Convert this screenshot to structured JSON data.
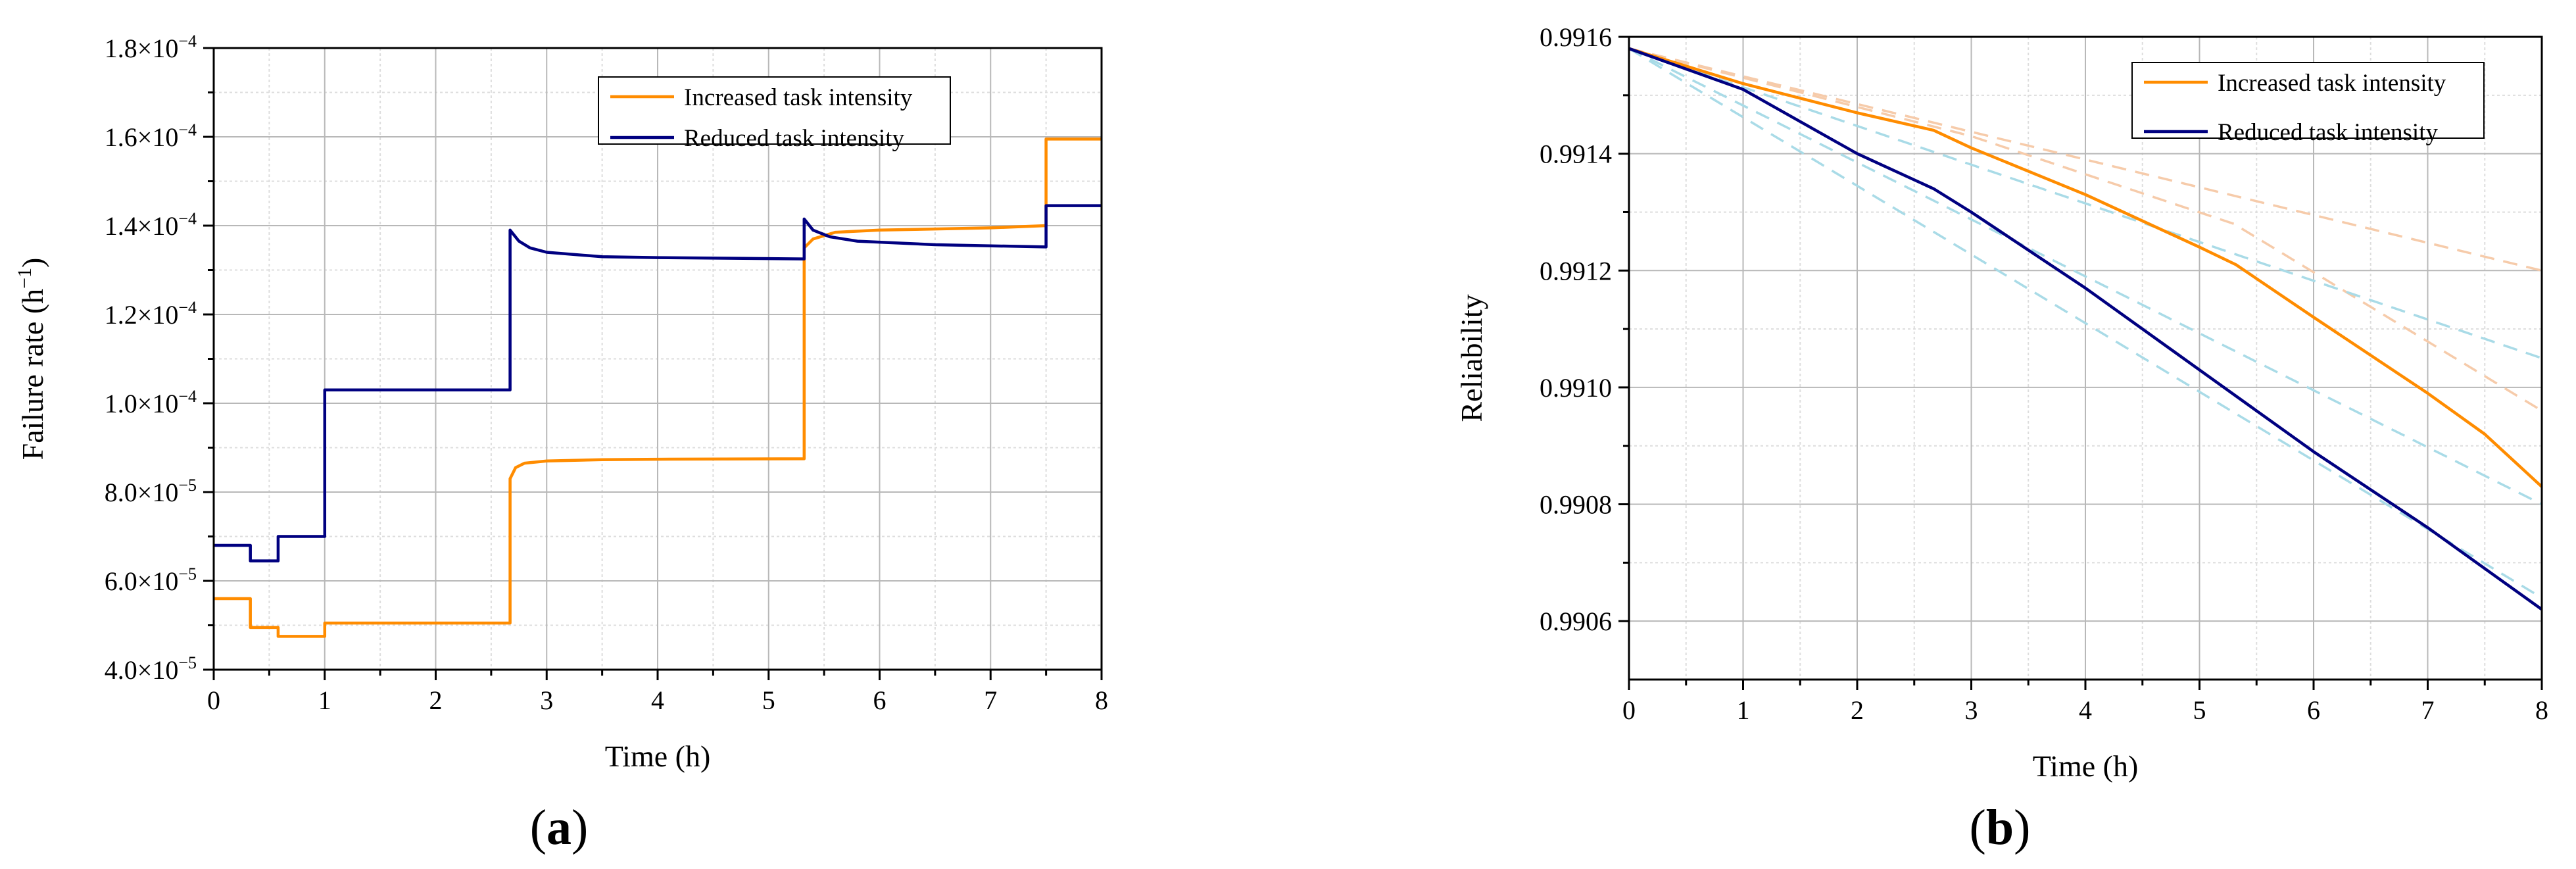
{
  "colors": {
    "increased": "#ff8c00",
    "reduced": "#000080",
    "light_blue": "#a9dbe7",
    "light_orange": "#f6cbaa"
  },
  "chart_data": [
    {
      "panel": "(a)",
      "panel_letter": "a",
      "type": "line",
      "xlabel": "Time (h)",
      "ylabel": "Failure rate (h",
      "ylabel_sup": "−1",
      "ylabel_close": ")",
      "xlim": [
        0,
        8
      ],
      "ylim": [
        4e-05,
        0.00018
      ],
      "xticks": [
        0,
        1,
        2,
        3,
        4,
        5,
        6,
        7,
        8
      ],
      "xtick_labels": [
        "0",
        "1",
        "2",
        "3",
        "4",
        "5",
        "6",
        "7",
        "8"
      ],
      "yticks": [
        4e-05,
        6e-05,
        8e-05,
        0.0001,
        0.00012,
        0.00014,
        0.00016,
        0.00018
      ],
      "ytick_labels": [
        {
          "mant": "4.0×10",
          "exp": "−5"
        },
        {
          "mant": "6.0×10",
          "exp": "−5"
        },
        {
          "mant": "8.0×10",
          "exp": "−5"
        },
        {
          "mant": "1.0×10",
          "exp": "−4"
        },
        {
          "mant": "1.2×10",
          "exp": "−4"
        },
        {
          "mant": "1.4×10",
          "exp": "−4"
        },
        {
          "mant": "1.6×10",
          "exp": "−4"
        },
        {
          "mant": "1.8×10",
          "exp": "−4"
        }
      ],
      "grid": true,
      "legend_position": "top-right",
      "series": [
        {
          "name": "Increased task intensity",
          "color_key": "increased",
          "x": [
            0,
            0.33,
            0.33,
            0.58,
            0.58,
            1.0,
            1.0,
            2.67,
            2.67,
            2.72,
            2.8,
            3.0,
            3.5,
            4.0,
            5.32,
            5.32,
            5.4,
            5.6,
            6.0,
            7.0,
            7.5,
            7.5,
            8.0
          ],
          "y": [
            5.6e-05,
            5.6e-05,
            4.95e-05,
            4.95e-05,
            4.75e-05,
            4.75e-05,
            5.05e-05,
            5.05e-05,
            8.3e-05,
            8.55e-05,
            8.65e-05,
            8.7e-05,
            8.73e-05,
            8.74e-05,
            8.75e-05,
            0.000135,
            0.000137,
            0.0001385,
            0.000139,
            0.0001395,
            0.00014,
            0.0001595,
            0.0001595
          ]
        },
        {
          "name": "Reduced task intensity",
          "color_key": "reduced",
          "x": [
            0,
            0.33,
            0.33,
            0.58,
            0.58,
            1.0,
            1.0,
            2.67,
            2.67,
            2.75,
            2.85,
            3.0,
            3.5,
            4.0,
            5.32,
            5.32,
            5.4,
            5.55,
            5.8,
            6.5,
            7.5,
            7.5,
            8.0
          ],
          "y": [
            6.8e-05,
            6.8e-05,
            6.45e-05,
            6.45e-05,
            7e-05,
            7e-05,
            0.000103,
            0.000103,
            0.000139,
            0.0001365,
            0.000135,
            0.000134,
            0.000133,
            0.0001328,
            0.0001325,
            0.0001415,
            0.000139,
            0.0001375,
            0.0001365,
            0.0001357,
            0.0001352,
            0.0001445,
            0.0001445
          ]
        }
      ]
    },
    {
      "panel": "(b)",
      "panel_letter": "b",
      "type": "line",
      "xlabel": "Time (h)",
      "ylabel": "Reliability",
      "xlim": [
        0,
        8
      ],
      "ylim": [
        0.9905,
        0.9916
      ],
      "xticks": [
        0,
        1,
        2,
        3,
        4,
        5,
        6,
        7,
        8
      ],
      "xtick_labels": [
        "0",
        "1",
        "2",
        "3",
        "4",
        "5",
        "6",
        "7",
        "8"
      ],
      "yticks": [
        0.9906,
        0.9908,
        0.991,
        0.9912,
        0.9914,
        0.9916
      ],
      "ytick_labels": [
        "0.9906",
        "0.9908",
        "0.9910",
        "0.9912",
        "0.9914",
        "0.9916"
      ],
      "grid": true,
      "legend_position": "top-right",
      "series": [
        {
          "name": "Increased task intensity",
          "color_key": "increased",
          "x": [
            0,
            1,
            2,
            2.67,
            3,
            4,
            5,
            5.32,
            6,
            7,
            7.5,
            8
          ],
          "y": [
            0.99158,
            0.99152,
            0.99147,
            0.99144,
            0.99141,
            0.99133,
            0.99124,
            0.99121,
            0.99112,
            0.99099,
            0.99092,
            0.99083
          ]
        },
        {
          "name": "Reduced task intensity",
          "color_key": "reduced",
          "x": [
            0,
            1,
            2,
            2.67,
            3,
            4,
            5,
            6,
            7,
            8
          ],
          "y": [
            0.99158,
            0.99151,
            0.9914,
            0.99134,
            0.9913,
            0.99117,
            0.99103,
            0.99089,
            0.99076,
            0.99062
          ]
        }
      ],
      "reference_lines": [
        {
          "color_key": "light_orange",
          "x": [
            0,
            8
          ],
          "y": [
            0.99158,
            0.9912
          ]
        },
        {
          "color_key": "light_orange",
          "x": [
            0,
            3,
            5.3,
            8
          ],
          "y": [
            0.99158,
            0.99143,
            0.99128,
            0.99096
          ]
        },
        {
          "color_key": "light_blue",
          "x": [
            0,
            8
          ],
          "y": [
            0.99158,
            0.99105
          ]
        },
        {
          "color_key": "light_blue",
          "x": [
            0,
            8
          ],
          "y": [
            0.99158,
            0.9908
          ]
        },
        {
          "color_key": "light_blue",
          "x": [
            0,
            8
          ],
          "y": [
            0.99158,
            0.99064
          ]
        }
      ]
    }
  ]
}
